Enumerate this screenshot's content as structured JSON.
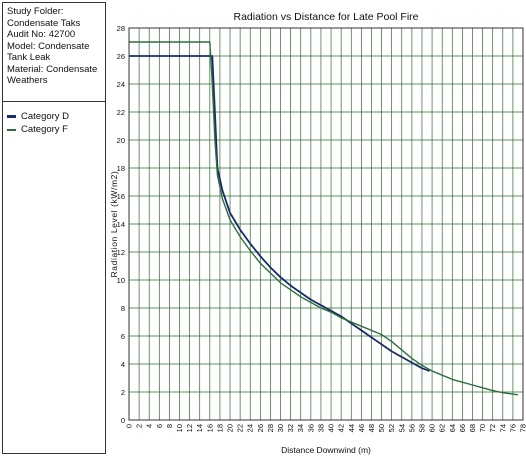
{
  "sidebar": {
    "info_lines": [
      "Study Folder: Condensate Taks",
      "Audit No: 42700",
      "Model: Condensate Tank Leak",
      "Material: Condensate Weathers"
    ]
  },
  "chart_data": {
    "type": "line",
    "title": "Radiation vs Distance for Late Pool Fire",
    "xlabel": "Distance Downwind (m)",
    "ylabel": "Radiation Level (kW/m2)",
    "xlim": [
      0,
      78
    ],
    "ylim": [
      0,
      28
    ],
    "x_ticks": [
      0,
      2,
      4,
      6,
      8,
      10,
      12,
      14,
      16,
      18,
      20,
      22,
      24,
      26,
      28,
      30,
      32,
      34,
      36,
      38,
      40,
      42,
      44,
      46,
      48,
      50,
      52,
      54,
      56,
      58,
      60,
      62,
      64,
      66,
      68,
      70,
      72,
      74,
      76,
      78
    ],
    "y_ticks": [
      0,
      2,
      4,
      6,
      8,
      10,
      12,
      14,
      16,
      18,
      20,
      22,
      24,
      26,
      28
    ],
    "grid": true,
    "series": [
      {
        "name": "Category D",
        "color": "#1a2a6e",
        "points": [
          [
            0,
            26
          ],
          [
            16.5,
            26
          ],
          [
            17,
            22
          ],
          [
            17.5,
            18
          ],
          [
            18.5,
            16.4
          ],
          [
            20,
            14.8
          ],
          [
            22,
            13.6
          ],
          [
            24,
            12.6
          ],
          [
            26,
            11.7
          ],
          [
            28,
            10.9
          ],
          [
            30,
            10.2
          ],
          [
            32,
            9.6
          ],
          [
            34,
            9.1
          ],
          [
            36,
            8.6
          ],
          [
            38,
            8.2
          ],
          [
            40,
            7.8
          ],
          [
            42,
            7.4
          ],
          [
            44,
            6.9
          ],
          [
            46,
            6.4
          ],
          [
            48,
            5.9
          ],
          [
            50,
            5.4
          ],
          [
            52,
            4.9
          ],
          [
            54,
            4.5
          ],
          [
            56,
            4.1
          ],
          [
            58,
            3.7
          ],
          [
            59.5,
            3.5
          ]
        ]
      },
      {
        "name": "Category F",
        "color": "#2e6e3a",
        "points": [
          [
            0,
            27
          ],
          [
            16,
            27
          ],
          [
            16.5,
            24
          ],
          [
            17,
            20
          ],
          [
            17.5,
            17.5
          ],
          [
            18.5,
            15.8
          ],
          [
            20,
            14.3
          ],
          [
            22,
            13.1
          ],
          [
            24,
            12.1
          ],
          [
            26,
            11.2
          ],
          [
            28,
            10.5
          ],
          [
            30,
            9.8
          ],
          [
            32,
            9.3
          ],
          [
            34,
            8.8
          ],
          [
            36,
            8.4
          ],
          [
            38,
            8.0
          ],
          [
            40,
            7.7
          ],
          [
            42,
            7.3
          ],
          [
            44,
            7.0
          ],
          [
            46,
            6.7
          ],
          [
            48,
            6.4
          ],
          [
            50,
            6.1
          ],
          [
            52,
            5.6
          ],
          [
            54,
            5.0
          ],
          [
            56,
            4.4
          ],
          [
            58,
            3.9
          ],
          [
            60,
            3.5
          ],
          [
            62,
            3.2
          ],
          [
            64,
            2.9
          ],
          [
            66,
            2.7
          ],
          [
            68,
            2.5
          ],
          [
            70,
            2.3
          ],
          [
            72,
            2.1
          ],
          [
            74,
            1.95
          ],
          [
            76,
            1.85
          ],
          [
            77,
            1.8
          ]
        ]
      }
    ]
  }
}
